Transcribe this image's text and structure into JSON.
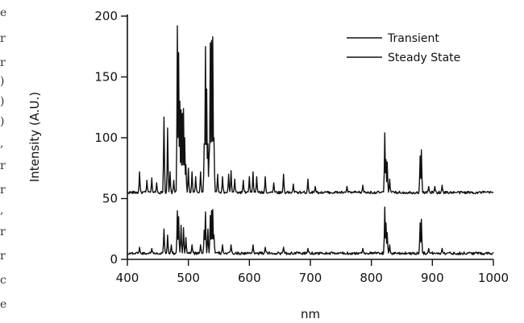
{
  "chart_data": {
    "type": "line",
    "title": "",
    "xlabel": "nm",
    "ylabel": "Intensity (A.U.)",
    "xlim": [
      400,
      1000
    ],
    "ylim": [
      0,
      200
    ],
    "x_ticks": [
      400,
      500,
      600,
      700,
      800,
      900,
      1000
    ],
    "x_tick_labels": [
      "400",
      "500",
      "600",
      "700",
      "800",
      "900",
      "1000"
    ],
    "y_ticks": [
      0,
      50,
      100,
      150,
      200
    ],
    "y_tick_labels": [
      "0",
      "50",
      "100",
      "150",
      "200"
    ],
    "legend": {
      "position": "top-right"
    },
    "grid": false,
    "series": [
      {
        "name": "Transient",
        "baseline": 55,
        "peaks": [
          [
            420,
            72
          ],
          [
            432,
            65
          ],
          [
            440,
            67
          ],
          [
            448,
            63
          ],
          [
            460,
            117
          ],
          [
            466,
            108
          ],
          [
            470,
            72
          ],
          [
            476,
            65
          ],
          [
            482,
            192
          ],
          [
            484,
            170
          ],
          [
            486,
            130
          ],
          [
            488,
            123
          ],
          [
            490,
            120
          ],
          [
            492,
            124
          ],
          [
            494,
            100
          ],
          [
            496,
            78
          ],
          [
            500,
            75
          ],
          [
            506,
            72
          ],
          [
            512,
            68
          ],
          [
            520,
            72
          ],
          [
            526,
            95
          ],
          [
            528,
            175
          ],
          [
            530,
            140
          ],
          [
            532,
            95
          ],
          [
            534,
            85
          ],
          [
            536,
            178
          ],
          [
            538,
            180
          ],
          [
            540,
            183
          ],
          [
            542,
            100
          ],
          [
            548,
            70
          ],
          [
            556,
            68
          ],
          [
            566,
            70
          ],
          [
            570,
            73
          ],
          [
            576,
            66
          ],
          [
            590,
            65
          ],
          [
            600,
            68
          ],
          [
            606,
            72
          ],
          [
            612,
            68
          ],
          [
            626,
            68
          ],
          [
            640,
            63
          ],
          [
            656,
            70
          ],
          [
            672,
            62
          ],
          [
            696,
            66
          ],
          [
            708,
            60
          ],
          [
            760,
            60
          ],
          [
            786,
            61
          ],
          [
            822,
            104
          ],
          [
            824,
            82
          ],
          [
            826,
            80
          ],
          [
            830,
            66
          ],
          [
            880,
            85
          ],
          [
            882,
            90
          ],
          [
            894,
            60
          ],
          [
            904,
            60
          ],
          [
            916,
            61
          ]
        ]
      },
      {
        "name": "Steady State",
        "baseline": 5,
        "peaks": [
          [
            420,
            10
          ],
          [
            440,
            9
          ],
          [
            460,
            25
          ],
          [
            466,
            20
          ],
          [
            472,
            12
          ],
          [
            482,
            40
          ],
          [
            484,
            35
          ],
          [
            488,
            28
          ],
          [
            492,
            26
          ],
          [
            496,
            18
          ],
          [
            506,
            12
          ],
          [
            520,
            12
          ],
          [
            526,
            24
          ],
          [
            528,
            39
          ],
          [
            532,
            25
          ],
          [
            536,
            36
          ],
          [
            538,
            40
          ],
          [
            540,
            41
          ],
          [
            542,
            20
          ],
          [
            556,
            12
          ],
          [
            570,
            12
          ],
          [
            606,
            12
          ],
          [
            626,
            10
          ],
          [
            656,
            10
          ],
          [
            696,
            9
          ],
          [
            786,
            9
          ],
          [
            822,
            43
          ],
          [
            824,
            30
          ],
          [
            826,
            22
          ],
          [
            830,
            12
          ],
          [
            880,
            30
          ],
          [
            882,
            33
          ],
          [
            894,
            9
          ],
          [
            916,
            9
          ]
        ]
      }
    ]
  }
}
